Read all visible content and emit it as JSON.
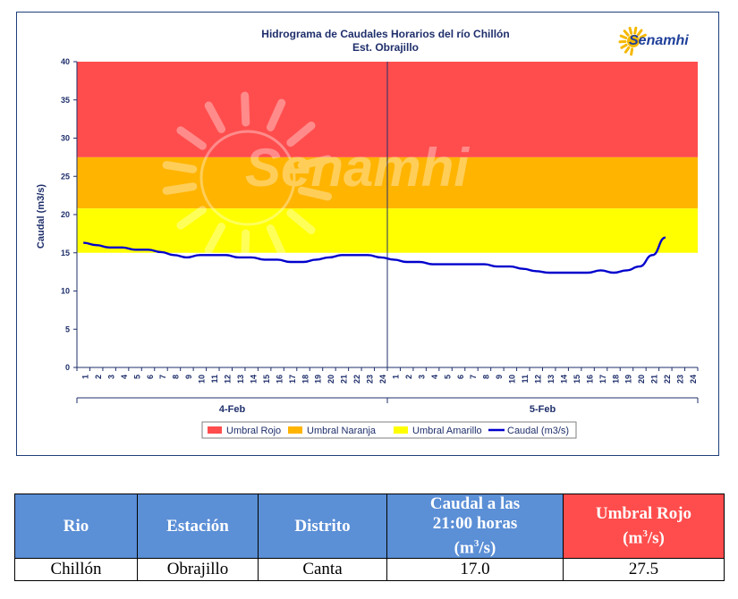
{
  "chart_data": {
    "type": "line",
    "title": "Hidrograma de Caudales Horarios del río Chillón",
    "subtitle": "Est. Obrajillo",
    "ylabel": "Caudal  (m3/s)",
    "ylim": [
      0,
      40
    ],
    "yticks": [
      0,
      5,
      10,
      15,
      20,
      25,
      30,
      35,
      40
    ],
    "days": [
      "4-Feb",
      "5-Feb"
    ],
    "hours_per_day": 24,
    "threshold_bands": [
      {
        "name": "Umbral Rojo",
        "from": 27.5,
        "to": 40,
        "color": "#ff4d4d"
      },
      {
        "name": "Umbral Naranja",
        "from": 20.8,
        "to": 27.5,
        "color": "#ffb400"
      },
      {
        "name": "Umbral Amarillo",
        "from": 15,
        "to": 20.8,
        "color": "#ffff00"
      }
    ],
    "series": [
      {
        "name": "Caudal (m3/s)",
        "color": "#0000cc",
        "values": [
          16.3,
          16.0,
          15.7,
          15.7,
          15.4,
          15.4,
          15.1,
          14.7,
          14.4,
          14.7,
          14.7,
          14.7,
          14.4,
          14.4,
          14.1,
          14.1,
          13.8,
          13.8,
          14.1,
          14.4,
          14.7,
          14.7,
          14.7,
          14.4,
          14.1,
          13.8,
          13.8,
          13.5,
          13.5,
          13.5,
          13.5,
          13.5,
          13.2,
          13.2,
          12.9,
          12.6,
          12.4,
          12.4,
          12.4,
          12.4,
          12.7,
          12.4,
          12.7,
          13.2,
          14.7,
          17.0
        ]
      }
    ],
    "legend_position": "bottom"
  },
  "watermark": {
    "text": "Senamhi"
  },
  "logo": {
    "text": "Senamhi"
  },
  "table": {
    "headers": [
      "Rio",
      "Estación",
      "Distrito",
      "Caudal a las 21:00 horas (m³/s)",
      "Umbral Rojo (m³/s)"
    ],
    "row": [
      "Chillón",
      "Obrajillo",
      "Canta",
      "17.0",
      "27.5"
    ],
    "header_colors": {
      "normal": "#5b8fd6",
      "highlight": "#ff4d4d"
    }
  }
}
